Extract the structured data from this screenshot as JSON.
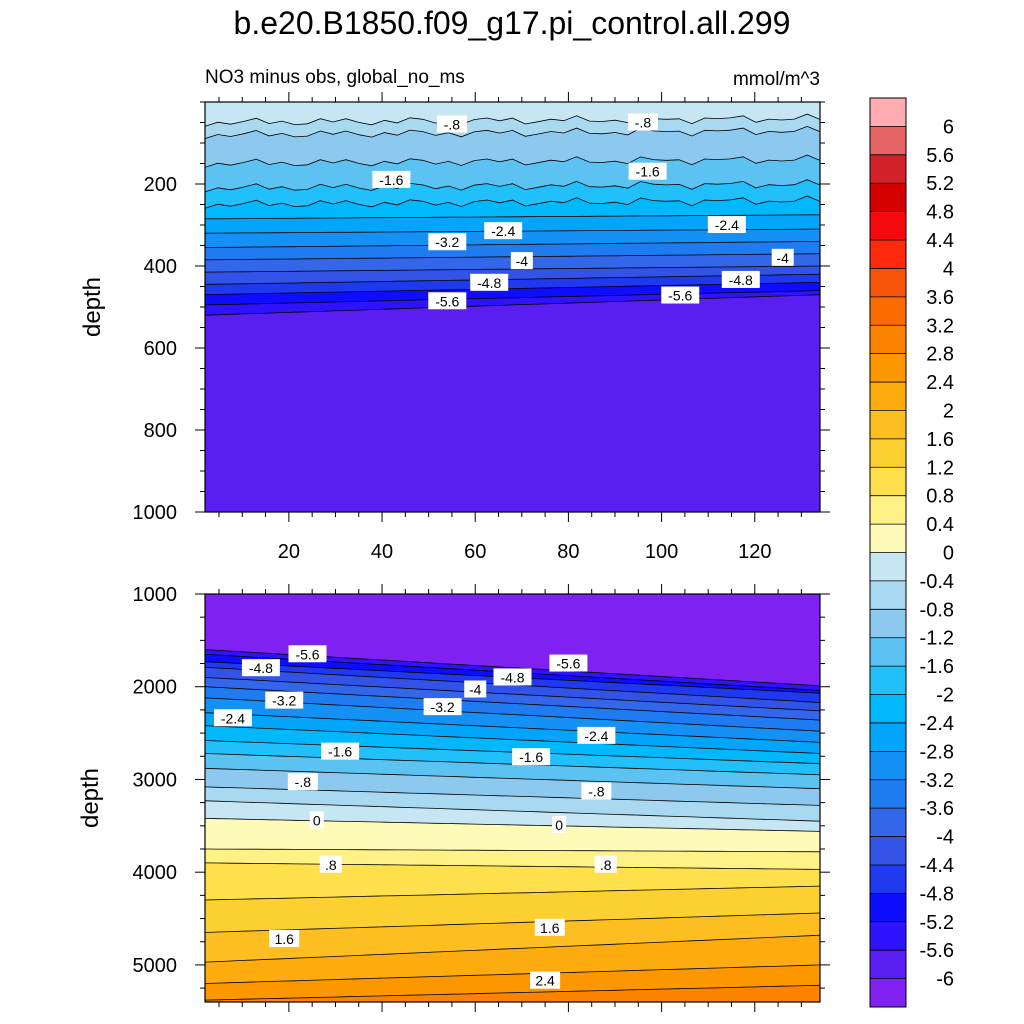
{
  "title": "b.e20.B1850.f09_g17.pi_control.all.299",
  "subtitle_left": "NO3 minus obs, global_no_ms",
  "subtitle_right": "mmol/m^3",
  "chart_data": {
    "type": "heatmap",
    "variable": "NO3 minus obs",
    "units": "mmol/m^3",
    "x_ticks": [
      20,
      40,
      60,
      80,
      100,
      120
    ],
    "xlim": [
      2,
      134
    ],
    "levels": [
      -6,
      -5.6,
      -5.2,
      -4.8,
      -4.4,
      -4,
      -3.6,
      -3.2,
      -2.8,
      -2.4,
      -2,
      -1.6,
      -1.2,
      -0.8,
      -0.4,
      0,
      0.4,
      0.8,
      1.2,
      1.6,
      2,
      2.4,
      2.8,
      3.2,
      3.6,
      4,
      4.4,
      4.8,
      5.2,
      5.6,
      6
    ],
    "colorbar_labels": [
      "6",
      "5.6",
      "5.2",
      "4.8",
      "4.4",
      "4",
      "3.6",
      "3.2",
      "2.8",
      "2.4",
      "2",
      "1.6",
      "1.2",
      "0.8",
      "0.4",
      "0",
      "-0.4",
      "-0.8",
      "-1.2",
      "-1.6",
      "-2",
      "-2.4",
      "-2.8",
      "-3.2",
      "-3.6",
      "-4",
      "-4.4",
      "-4.8",
      "-5.2",
      "-5.6",
      "-6"
    ],
    "colors": [
      "#7f21f0",
      "#5a1ff0",
      "#2f13ff",
      "#0f0dff",
      "#1f3aee",
      "#3253e6",
      "#3466ea",
      "#1e7cf0",
      "#1590f5",
      "#03a5fb",
      "#00b8fb",
      "#21c0fa",
      "#5cc2f2",
      "#8dc9ee",
      "#a9d8f1",
      "#c6e6f4",
      "#fefab8",
      "#fef186",
      "#fee04d",
      "#fdd031",
      "#fdbe22",
      "#fdac0f",
      "#fc9700",
      "#fb8300",
      "#fa6b00",
      "#f65408",
      "#ff2a0e",
      "#f40a0e",
      "#d40000",
      "#d12229",
      "#e56466",
      "#ffadb2"
    ],
    "panels": [
      {
        "name": "upper",
        "ylabel": "depth",
        "ylim": [
          1000,
          0
        ],
        "y_ticks": [
          200,
          400,
          600,
          800,
          1000
        ],
        "contour_depths": [
          [
            50,
            40
          ],
          [
            -0.8,
            80,
            70
          ],
          [
            -1.2,
            150,
            140
          ],
          [
            -1.6,
            210,
            200
          ],
          [
            -2,
            250,
            240
          ],
          [
            -2.4,
            285,
            275
          ],
          [
            -2.8,
            320,
            310
          ],
          [
            -3.2,
            355,
            340
          ],
          [
            -3.6,
            385,
            370
          ],
          [
            -4,
            415,
            400
          ],
          [
            -4.4,
            445,
            420
          ],
          [
            -4.8,
            470,
            440
          ],
          [
            -5.2,
            495,
            460
          ],
          [
            -5.6,
            520,
            470
          ]
        ],
        "contour_labels": [
          {
            "text": "-.8",
            "x": 55,
            "depth": 55
          },
          {
            "text": "-.8",
            "x": 96,
            "depth": 50
          },
          {
            "text": "-1.6",
            "x": 42,
            "depth": 190
          },
          {
            "text": "-1.6",
            "x": 97,
            "depth": 170
          },
          {
            "text": "-2.4",
            "x": 66,
            "depth": 315
          },
          {
            "text": "-2.4",
            "x": 114,
            "depth": 300
          },
          {
            "text": "-3.2",
            "x": 54,
            "depth": 342
          },
          {
            "text": "-4",
            "x": 70,
            "depth": 388
          },
          {
            "text": "-4",
            "x": 126,
            "depth": 380
          },
          {
            "text": "-4.8",
            "x": 63,
            "depth": 441
          },
          {
            "text": "-4.8",
            "x": 117,
            "depth": 434
          },
          {
            "text": "-5.6",
            "x": 54,
            "depth": 486
          },
          {
            "text": "-5.6",
            "x": 104,
            "depth": 472
          }
        ]
      },
      {
        "name": "lower",
        "ylabel": "depth",
        "ylim": [
          5400,
          1000
        ],
        "y_ticks": [
          1000,
          2000,
          3000,
          4000,
          5000
        ],
        "contour_depths": [
          [
            -5.6,
            1600,
            1990
          ],
          [
            -5.2,
            1650,
            2040
          ],
          [
            -4.8,
            1730,
            2070
          ],
          [
            -4.4,
            1790,
            2170
          ],
          [
            -4,
            1900,
            2260
          ],
          [
            -3.6,
            2000,
            2360
          ],
          [
            -3.2,
            2120,
            2480
          ],
          [
            -2.8,
            2280,
            2600
          ],
          [
            -2.4,
            2420,
            2720
          ],
          [
            -2,
            2580,
            2830
          ],
          [
            -1.6,
            2720,
            2950
          ],
          [
            -1.2,
            2880,
            3100
          ],
          [
            -0.8,
            3080,
            3280
          ],
          [
            -0.4,
            3230,
            3450
          ],
          [
            0,
            3420,
            3560
          ],
          [
            0.4,
            3750,
            3780
          ],
          [
            0.8,
            3900,
            3970
          ],
          [
            1.2,
            4300,
            4150
          ],
          [
            1.6,
            4650,
            4440
          ],
          [
            2,
            4970,
            4680
          ],
          [
            2.4,
            5200,
            5000
          ],
          [
            2.8,
            5380,
            5220
          ]
        ],
        "contour_labels": [
          {
            "text": "-5.6",
            "x": 24,
            "depth": 1650
          },
          {
            "text": "-5.6",
            "x": 80,
            "depth": 1750
          },
          {
            "text": "-4.8",
            "x": 14,
            "depth": 1800
          },
          {
            "text": "-4.8",
            "x": 68,
            "depth": 1900
          },
          {
            "text": "-4",
            "x": 60,
            "depth": 2030
          },
          {
            "text": "-3.2",
            "x": 19,
            "depth": 2150
          },
          {
            "text": "-3.2",
            "x": 53,
            "depth": 2220
          },
          {
            "text": "-2.4",
            "x": 8,
            "depth": 2340
          },
          {
            "text": "-2.4",
            "x": 86,
            "depth": 2530
          },
          {
            "text": "-1.6",
            "x": 31,
            "depth": 2700
          },
          {
            "text": "-1.6",
            "x": 72,
            "depth": 2760
          },
          {
            "text": "-.8",
            "x": 23,
            "depth": 3030
          },
          {
            "text": "-.8",
            "x": 86,
            "depth": 3130
          },
          {
            "text": "0",
            "x": 26,
            "depth": 3440
          },
          {
            "text": "0",
            "x": 78,
            "depth": 3490
          },
          {
            "text": ".8",
            "x": 29,
            "depth": 3920
          },
          {
            "text": ".8",
            "x": 88,
            "depth": 3920
          },
          {
            "text": "1.6",
            "x": 19,
            "depth": 4720
          },
          {
            "text": "1.6",
            "x": 76,
            "depth": 4600
          },
          {
            "text": "2.4",
            "x": 75,
            "depth": 5170
          }
        ]
      }
    ]
  }
}
